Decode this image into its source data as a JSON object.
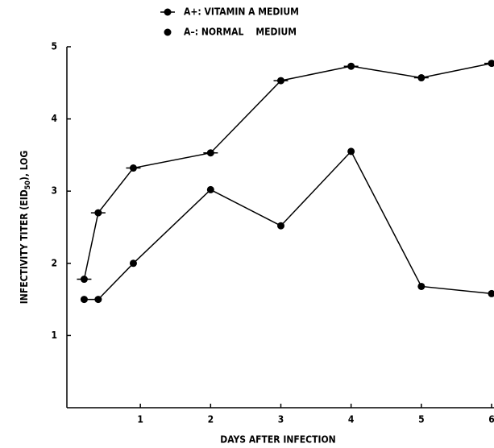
{
  "chart_data": {
    "type": "line",
    "x_label": "DAYS AFTER INFECTION",
    "y_label_parts": [
      "INFECTIVITY TITER (EID",
      "50",
      "), LOG"
    ],
    "x": [
      0.2,
      0.4,
      0.9,
      2,
      3,
      4,
      5,
      6
    ],
    "series": [
      {
        "name": "A+: VITAMIN A MEDIUM",
        "color": "#000000",
        "marker": "circle-dash",
        "values": [
          1.78,
          2.7,
          3.32,
          3.53,
          4.53,
          4.73,
          4.57,
          4.77
        ]
      },
      {
        "name": "A–: NORMAL    MEDIUM",
        "color": "#000000",
        "marker": "circle",
        "values": [
          1.5,
          1.5,
          2.0,
          3.02,
          2.52,
          3.55,
          1.68,
          1.58
        ]
      }
    ],
    "xlim": [
      0,
      6
    ],
    "xticks": [
      1,
      2,
      3,
      4,
      5,
      6
    ],
    "ylim": [
      0,
      5
    ],
    "yticks": [
      1,
      2,
      3,
      4,
      5
    ],
    "grid": false
  }
}
